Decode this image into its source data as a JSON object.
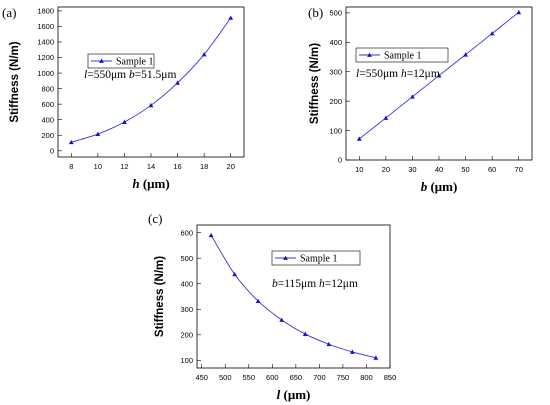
{
  "chart_data": [
    {
      "panel": "(a)",
      "type": "line",
      "xlabel_symbol": "h",
      "xlabel_unit": " (μm)",
      "ylabel": "Stiffness (N/m)",
      "xlim": [
        7,
        21
      ],
      "ylim": [
        -80,
        1850
      ],
      "xticks": [
        8,
        10,
        12,
        14,
        16,
        18,
        20
      ],
      "yticks": [
        0,
        200,
        400,
        600,
        800,
        1000,
        1200,
        1400,
        1600,
        1800
      ],
      "series": [
        {
          "name": "Sample 1",
          "x": [
            8,
            10,
            12,
            14,
            16,
            18,
            20
          ],
          "y": [
            110,
            215,
            370,
            585,
            875,
            1240,
            1710
          ]
        }
      ],
      "legend_position": "upper-left",
      "annotation": [
        {
          "t": "l",
          "italic": true
        },
        {
          "t": "=550μm ",
          "italic": false
        },
        {
          "t": "b",
          "italic": true
        },
        {
          "t": "=51.5μm",
          "italic": false
        }
      ]
    },
    {
      "panel": "(b)",
      "type": "line",
      "xlabel_symbol": "b",
      "xlabel_unit": " (μm)",
      "ylabel": "Stiffness (N/m)",
      "xlim": [
        5,
        75
      ],
      "ylim": [
        0,
        520
      ],
      "xticks": [
        10,
        20,
        30,
        40,
        50,
        60,
        70
      ],
      "yticks": [
        0,
        100,
        200,
        300,
        400,
        500
      ],
      "series": [
        {
          "name": "Sample 1",
          "x": [
            10,
            20,
            30,
            40,
            50,
            60,
            70
          ],
          "y": [
            72,
            143,
            215,
            287,
            358,
            430,
            502
          ]
        }
      ],
      "legend_position": "upper-left",
      "annotation": [
        {
          "t": "l",
          "italic": true
        },
        {
          "t": "=550μm ",
          "italic": false
        },
        {
          "t": "h",
          "italic": true
        },
        {
          "t": "=12μm",
          "italic": false
        }
      ]
    },
    {
      "panel": "(c)",
      "type": "line",
      "xlabel_symbol": "l",
      "xlabel_unit": " (μm)",
      "ylabel": "Stiffness (N/m)",
      "xlim": [
        440,
        850
      ],
      "ylim": [
        70,
        630
      ],
      "xticks": [
        450,
        500,
        550,
        600,
        650,
        700,
        750,
        800,
        850
      ],
      "yticks": [
        100,
        200,
        300,
        400,
        500,
        600
      ],
      "series": [
        {
          "name": "Sample 1",
          "x": [
            470,
            520,
            570,
            620,
            670,
            720,
            770,
            820
          ],
          "y": [
            590,
            437,
            332,
            258,
            203,
            163,
            133,
            110
          ]
        }
      ],
      "legend_position": "upper-right",
      "annotation": [
        {
          "t": "b",
          "italic": true
        },
        {
          "t": "=115μm ",
          "italic": false
        },
        {
          "t": "h",
          "italic": true
        },
        {
          "t": "=12μm",
          "italic": false
        }
      ]
    }
  ]
}
